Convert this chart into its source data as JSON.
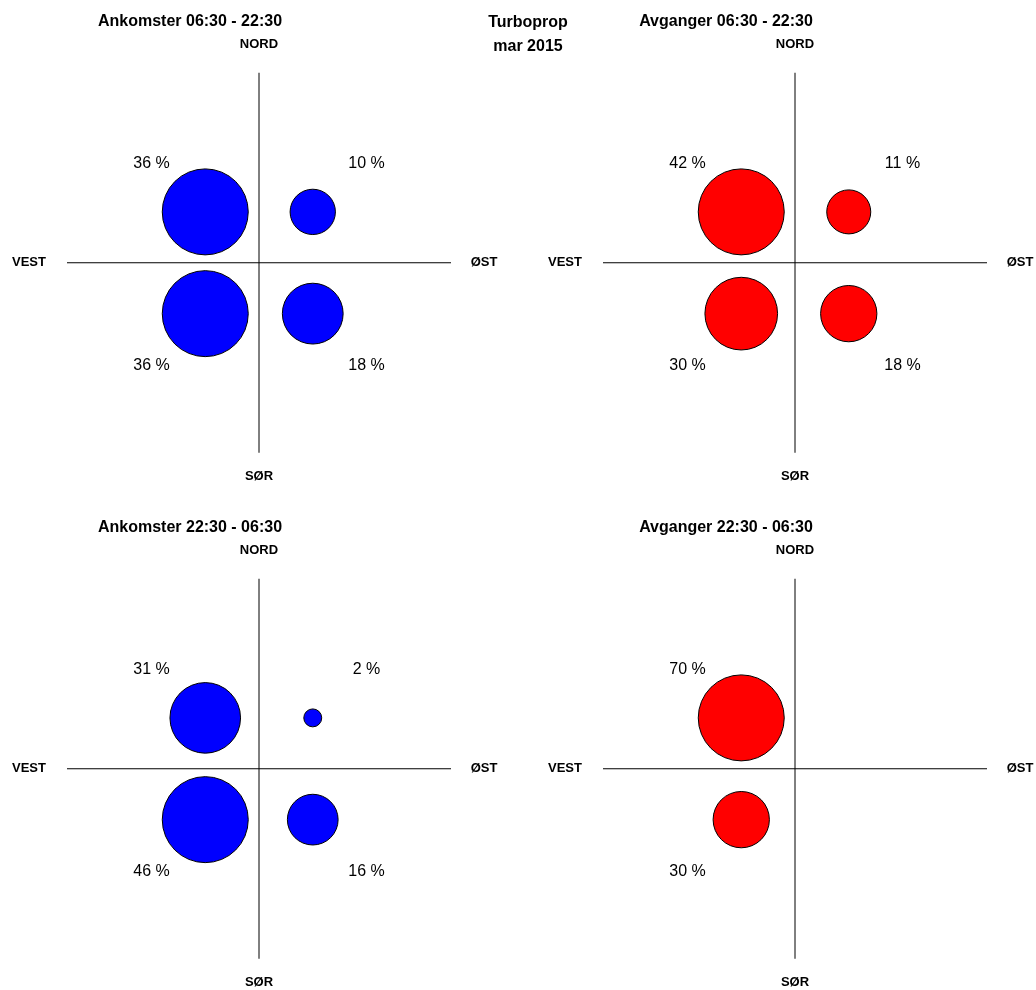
{
  "chart_data": [
    {
      "type": "other",
      "title": "Ankomster 06:30 - 22:30",
      "annotations": [
        "NORD",
        "SØR",
        "VEST",
        "ØST"
      ],
      "categories": [
        null,
        null,
        null,
        null
      ],
      "values": [
        36,
        10,
        36,
        18
      ],
      "value_labels": [
        "36 %",
        "10 %",
        "36 %",
        "18 %"
      ],
      "color": "#0000ff"
    },
    {
      "type": "other",
      "title": "Turboprop",
      "subtitle": "mar 2015"
    },
    {
      "type": "other",
      "title": "Avganger 06:30 - 22:30",
      "annotations": [
        "NORD",
        "SØR",
        "VEST",
        "ØST"
      ],
      "categories": [
        null,
        null,
        null,
        null
      ],
      "values": [
        42,
        11,
        30,
        18
      ],
      "value_labels": [
        "42 %",
        "11 %",
        "30 %",
        "18 %"
      ],
      "color": "#ff0000"
    },
    {
      "type": "other",
      "title": "Ankomster 22:30 - 06:30",
      "annotations": [
        "NORD",
        "SØR",
        "VEST",
        "ØST"
      ],
      "categories": [
        null,
        null,
        null,
        null
      ],
      "values": [
        31,
        2,
        46,
        16
      ],
      "value_labels": [
        "31 %",
        "2 %",
        "46 %",
        "16 %"
      ],
      "color": "#0000ff"
    },
    {
      "type": "other",
      "title": "Avganger 22:30 - 06:30",
      "annotations": [
        "NORD",
        "SØR",
        "VEST",
        "ØST"
      ],
      "categories": [
        null,
        null,
        null,
        null
      ],
      "values": [
        70,
        null,
        30,
        null
      ],
      "value_labels": [
        "70 %",
        null,
        "30 %",
        null
      ],
      "color": "#ff0000"
    }
  ]
}
